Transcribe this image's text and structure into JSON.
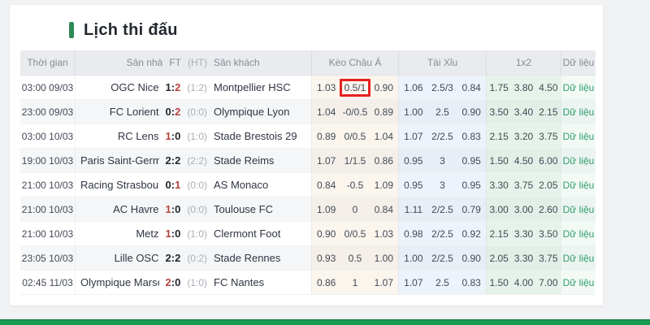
{
  "page": {
    "title": "Lịch thi đấu"
  },
  "colors": {
    "accent-green": "#2e8b57",
    "footer-green": "#189b50",
    "link-green": "#2f9e6a",
    "score-red": "#b5423c",
    "highlight-red": "#e52222",
    "header-bg": "#e9ebee"
  },
  "table": {
    "headers": {
      "time": "Thời gian",
      "home": "Sân nhà",
      "ft": "FT",
      "ht": "(HT)",
      "away": "Sân khách",
      "keo": "Kèo Châu Á",
      "taixiu": "Tài Xỉu",
      "x12": "1x2",
      "data": "Dữ liệu"
    },
    "rows": [
      {
        "time": "03:00 09/03",
        "home": "OGC Nice",
        "ft_home": "1",
        "ft_away": "2",
        "ht": "(1:2)",
        "winner": "away",
        "away": "Montpellier HSC",
        "keo": [
          "1.03",
          "0.5/1",
          "0.90"
        ],
        "taixiu": [
          "1.06",
          "2.5/3",
          "0.84"
        ],
        "x12": [
          "1.75",
          "3.80",
          "4.50"
        ],
        "data_label": "Dữ liệu",
        "highlight": {
          "col": "keo",
          "index": 1
        }
      },
      {
        "time": "23:00 09/03",
        "home": "FC Lorient",
        "ft_home": "0",
        "ft_away": "2",
        "ht": "(0:0)",
        "winner": "away",
        "away": "Olympique Lyon",
        "keo": [
          "1.04",
          "-0/0.5",
          "0.89"
        ],
        "taixiu": [
          "1.00",
          "2.5",
          "0.90"
        ],
        "x12": [
          "3.50",
          "3.40",
          "2.15"
        ],
        "data_label": "Dữ liệu"
      },
      {
        "time": "03:00 10/03",
        "home": "RC Lens",
        "ft_home": "1",
        "ft_away": "0",
        "ht": "(1:0)",
        "winner": "home",
        "away": "Stade Brestois 29",
        "keo": [
          "0.89",
          "0/0.5",
          "1.04"
        ],
        "taixiu": [
          "1.07",
          "2/2.5",
          "0.83"
        ],
        "x12": [
          "2.15",
          "3.20",
          "3.75"
        ],
        "data_label": "Dữ liệu"
      },
      {
        "time": "19:00 10/03",
        "home": "Paris Saint-Germain",
        "ft_home": "2",
        "ft_away": "2",
        "ht": "(2:2)",
        "winner": "draw",
        "away": "Stade Reims",
        "keo": [
          "1.07",
          "1/1.5",
          "0.86"
        ],
        "taixiu": [
          "0.95",
          "3",
          "0.95"
        ],
        "x12": [
          "1.50",
          "4.50",
          "6.00"
        ],
        "data_label": "Dữ liệu"
      },
      {
        "time": "21:00 10/03",
        "home": "Racing Strasbourg",
        "ft_home": "0",
        "ft_away": "1",
        "ht": "(0:0)",
        "winner": "away",
        "away": "AS Monaco",
        "keo": [
          "0.84",
          "-0.5",
          "1.09"
        ],
        "taixiu": [
          "0.95",
          "3",
          "0.95"
        ],
        "x12": [
          "3.30",
          "3.75",
          "2.05"
        ],
        "data_label": "Dữ liệu"
      },
      {
        "time": "21:00 10/03",
        "home": "AC Havre",
        "ft_home": "1",
        "ft_away": "0",
        "ht": "(0:0)",
        "winner": "home",
        "away": "Toulouse FC",
        "keo": [
          "1.09",
          "0",
          "0.84"
        ],
        "taixiu": [
          "1.11",
          "2/2.5",
          "0.79"
        ],
        "x12": [
          "3.00",
          "3.00",
          "2.60"
        ],
        "data_label": "Dữ liệu"
      },
      {
        "time": "21:00 10/03",
        "home": "Metz",
        "ft_home": "1",
        "ft_away": "0",
        "ht": "(1:0)",
        "winner": "home",
        "away": "Clermont Foot",
        "keo": [
          "0.90",
          "0/0.5",
          "1.03"
        ],
        "taixiu": [
          "0.98",
          "2/2.5",
          "0.92"
        ],
        "x12": [
          "2.15",
          "3.30",
          "3.50"
        ],
        "data_label": "Dữ liệu"
      },
      {
        "time": "23:05 10/03",
        "home": "Lille OSC",
        "ft_home": "2",
        "ft_away": "2",
        "ht": "(0:2)",
        "winner": "draw",
        "away": "Stade Rennes",
        "keo": [
          "0.93",
          "0.5",
          "1.00"
        ],
        "taixiu": [
          "1.00",
          "2/2.5",
          "0.90"
        ],
        "x12": [
          "2.05",
          "3.30",
          "3.75"
        ],
        "data_label": "Dữ liệu"
      },
      {
        "time": "02:45 11/03",
        "home": "Olympique Marseille",
        "ft_home": "2",
        "ft_away": "0",
        "ht": "(1:0)",
        "winner": "home",
        "away": "FC Nantes",
        "keo": [
          "0.86",
          "1",
          "1.07"
        ],
        "taixiu": [
          "1.07",
          "2.5",
          "0.83"
        ],
        "x12": [
          "1.50",
          "4.00",
          "7.00"
        ],
        "data_label": "Dữ liệu"
      }
    ]
  }
}
